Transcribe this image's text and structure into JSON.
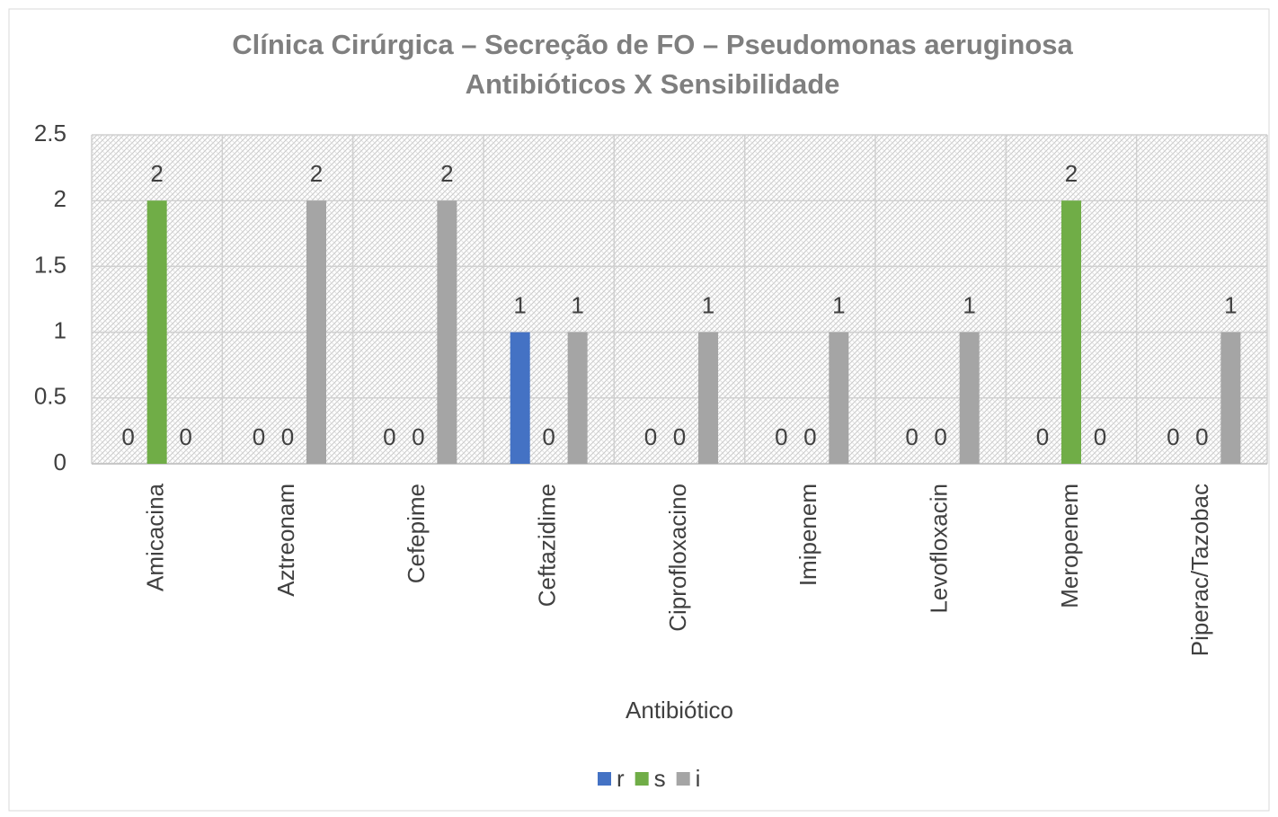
{
  "chart_data": {
    "type": "bar",
    "title": "Clínica Cirúrgica – Secreção de FO – Pseudomonas aeruginosa",
    "subtitle": "Antibióticos X Sensibilidade",
    "x_label": "Antibiótico",
    "categories": [
      "Amicacina",
      "Aztreonam",
      "Cefepime",
      "Ceftazidime",
      "Ciprofloxacino",
      "Imipenem",
      "Levofloxacin",
      "Meropenem",
      "Piperac/Tazobac"
    ],
    "series": [
      {
        "name": "r",
        "color": "#4472c4",
        "values": [
          0,
          0,
          0,
          1,
          0,
          0,
          0,
          0,
          0
        ]
      },
      {
        "name": "s",
        "color": "#70ad47",
        "values": [
          2,
          0,
          0,
          0,
          0,
          0,
          0,
          2,
          0
        ]
      },
      {
        "name": "i",
        "color": "#a5a5a5",
        "values": [
          0,
          2,
          2,
          1,
          1,
          1,
          1,
          0,
          1
        ]
      }
    ],
    "ylim": [
      0,
      2.5
    ],
    "yticks": [
      0,
      0.5,
      1,
      1.5,
      2,
      2.5
    ],
    "grid": true,
    "legend": "bottom"
  }
}
